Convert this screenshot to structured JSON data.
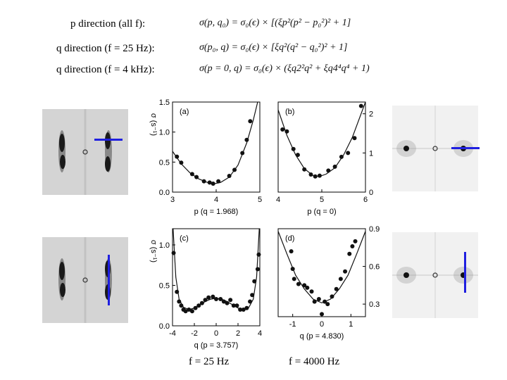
{
  "headers": {
    "p_dir": "p direction (all f):",
    "q_dir_25": "q direction (f = 25 Hz):",
    "q_dir_4k": "q direction (f = 4 kHz):"
  },
  "equations": {
    "eq1": "σ(p, q₀) = σ₀(ϵ) × [(ξp²(p² − p₀²)² + 1]",
    "eq2": "σ(p₀, q) = σ₀(ϵ) × [ξq²(q² − q₀²)² + 1]",
    "eq3": "σ(p = 0, q) = σ₀(ϵ) × (ξq2²q² + ξq4⁴q⁴ + 1)"
  },
  "freq_labels": {
    "left": "f = 25 Hz",
    "right": "f = 4000 Hz"
  },
  "colors": {
    "marker_line": "#1f1fe0",
    "points": "#111111",
    "fit": "#111111"
  },
  "chart_data": [
    {
      "type": "scatter",
      "panel": "(a)",
      "xlabel": "p (q = 1.968)",
      "ylabel": "σ (s⁻¹)",
      "xlim": [
        3,
        5
      ],
      "ylim": [
        0,
        1.5
      ],
      "xticks": [
        3,
        4,
        5
      ],
      "yticks": [
        0.0,
        0.5,
        1.0,
        1.5
      ],
      "y_axis_side": "left",
      "points": [
        [
          3.1,
          0.59
        ],
        [
          3.2,
          0.49
        ],
        [
          3.45,
          0.3
        ],
        [
          3.55,
          0.25
        ],
        [
          3.72,
          0.18
        ],
        [
          3.85,
          0.16
        ],
        [
          3.93,
          0.14
        ],
        [
          4.05,
          0.18
        ],
        [
          4.3,
          0.27
        ],
        [
          4.42,
          0.37
        ],
        [
          4.6,
          0.65
        ],
        [
          4.7,
          0.87
        ],
        [
          4.78,
          1.18
        ]
      ],
      "fit": [
        [
          3.0,
          0.68
        ],
        [
          3.2,
          0.47
        ],
        [
          3.4,
          0.32
        ],
        [
          3.6,
          0.22
        ],
        [
          3.8,
          0.16
        ],
        [
          3.95,
          0.14
        ],
        [
          4.1,
          0.16
        ],
        [
          4.3,
          0.25
        ],
        [
          4.5,
          0.45
        ],
        [
          4.7,
          0.82
        ],
        [
          4.85,
          1.2
        ],
        [
          4.95,
          1.5
        ]
      ]
    },
    {
      "type": "scatter",
      "panel": "(b)",
      "xlabel": "p (q = 0)",
      "ylabel": "",
      "xlim": [
        4,
        6
      ],
      "ylim": [
        0,
        2.3
      ],
      "xticks": [
        4,
        5,
        6
      ],
      "yticks": [
        0,
        1,
        2
      ],
      "y_axis_side": "right",
      "points": [
        [
          4.1,
          1.6
        ],
        [
          4.2,
          1.55
        ],
        [
          4.35,
          1.1
        ],
        [
          4.45,
          0.95
        ],
        [
          4.6,
          0.58
        ],
        [
          4.75,
          0.45
        ],
        [
          4.85,
          0.4
        ],
        [
          4.95,
          0.42
        ],
        [
          5.15,
          0.55
        ],
        [
          5.3,
          0.65
        ],
        [
          5.45,
          0.9
        ],
        [
          5.6,
          1.0
        ],
        [
          5.75,
          1.38
        ],
        [
          5.9,
          2.2
        ]
      ],
      "fit": [
        [
          4.0,
          2.1
        ],
        [
          4.2,
          1.45
        ],
        [
          4.4,
          0.95
        ],
        [
          4.6,
          0.6
        ],
        [
          4.8,
          0.42
        ],
        [
          4.95,
          0.4
        ],
        [
          5.1,
          0.46
        ],
        [
          5.3,
          0.62
        ],
        [
          5.5,
          0.95
        ],
        [
          5.7,
          1.4
        ],
        [
          5.9,
          2.0
        ],
        [
          6.0,
          2.3
        ]
      ]
    },
    {
      "type": "scatter",
      "panel": "(c)",
      "xlabel": "q (p = 3.757)",
      "ylabel": "σ (s⁻¹)",
      "xlim": [
        -4,
        4
      ],
      "ylim": [
        0,
        1.2
      ],
      "xticks": [
        -4,
        -2,
        0,
        2,
        4
      ],
      "yticks": [
        0.0,
        0.5,
        1.0
      ],
      "y_axis_side": "left",
      "points": [
        [
          -3.9,
          0.9
        ],
        [
          -3.6,
          0.42
        ],
        [
          -3.4,
          0.3
        ],
        [
          -3.2,
          0.25
        ],
        [
          -3.0,
          0.2
        ],
        [
          -2.8,
          0.18
        ],
        [
          -2.5,
          0.2
        ],
        [
          -2.2,
          0.18
        ],
        [
          -1.9,
          0.22
        ],
        [
          -1.6,
          0.25
        ],
        [
          -1.3,
          0.28
        ],
        [
          -1.0,
          0.32
        ],
        [
          -0.7,
          0.35
        ],
        [
          -0.3,
          0.36
        ],
        [
          0.0,
          0.33
        ],
        [
          0.4,
          0.33
        ],
        [
          0.7,
          0.3
        ],
        [
          1.0,
          0.28
        ],
        [
          1.3,
          0.32
        ],
        [
          1.6,
          0.25
        ],
        [
          1.9,
          0.25
        ],
        [
          2.2,
          0.2
        ],
        [
          2.5,
          0.2
        ],
        [
          2.8,
          0.22
        ],
        [
          3.1,
          0.3
        ],
        [
          3.3,
          0.38
        ],
        [
          3.5,
          0.55
        ],
        [
          3.8,
          0.7
        ],
        [
          3.9,
          0.88
        ]
      ],
      "fit": [
        [
          -3.95,
          1.2
        ],
        [
          -3.7,
          0.6
        ],
        [
          -3.4,
          0.33
        ],
        [
          -3.0,
          0.23
        ],
        [
          -2.5,
          0.2
        ],
        [
          -2.0,
          0.22
        ],
        [
          -1.5,
          0.26
        ],
        [
          -1.0,
          0.3
        ],
        [
          -0.5,
          0.33
        ],
        [
          0.0,
          0.34
        ],
        [
          0.5,
          0.33
        ],
        [
          1.0,
          0.3
        ],
        [
          1.5,
          0.26
        ],
        [
          2.0,
          0.22
        ],
        [
          2.5,
          0.2
        ],
        [
          3.0,
          0.23
        ],
        [
          3.4,
          0.33
        ],
        [
          3.7,
          0.6
        ],
        [
          3.95,
          1.2
        ]
      ]
    },
    {
      "type": "scatter",
      "panel": "(d)",
      "xlabel": "q (p = 4.830)",
      "ylabel": "",
      "xlim": [
        -1.5,
        1.5
      ],
      "ylim": [
        0.2,
        0.9
      ],
      "xticks": [
        -1,
        0,
        1
      ],
      "yticks": [
        0.3,
        0.6,
        0.9
      ],
      "y_axis_side": "right",
      "points": [
        [
          -1.05,
          0.72
        ],
        [
          -1.0,
          0.58
        ],
        [
          -0.95,
          0.5
        ],
        [
          -0.8,
          0.46
        ],
        [
          -0.6,
          0.45
        ],
        [
          -0.5,
          0.43
        ],
        [
          -0.35,
          0.4
        ],
        [
          -0.25,
          0.32
        ],
        [
          -0.1,
          0.34
        ],
        [
          0.0,
          0.22
        ],
        [
          0.1,
          0.32
        ],
        [
          0.2,
          0.3
        ],
        [
          0.35,
          0.36
        ],
        [
          0.5,
          0.42
        ],
        [
          0.65,
          0.5
        ],
        [
          0.8,
          0.56
        ],
        [
          0.95,
          0.7
        ],
        [
          1.05,
          0.76
        ],
        [
          1.15,
          0.8
        ]
      ],
      "fit": [
        [
          -1.5,
          0.88
        ],
        [
          -1.2,
          0.7
        ],
        [
          -0.9,
          0.53
        ],
        [
          -0.6,
          0.42
        ],
        [
          -0.3,
          0.34
        ],
        [
          0.0,
          0.31
        ],
        [
          0.3,
          0.34
        ],
        [
          0.6,
          0.42
        ],
        [
          0.9,
          0.53
        ],
        [
          1.2,
          0.7
        ],
        [
          1.5,
          0.88
        ]
      ]
    }
  ]
}
